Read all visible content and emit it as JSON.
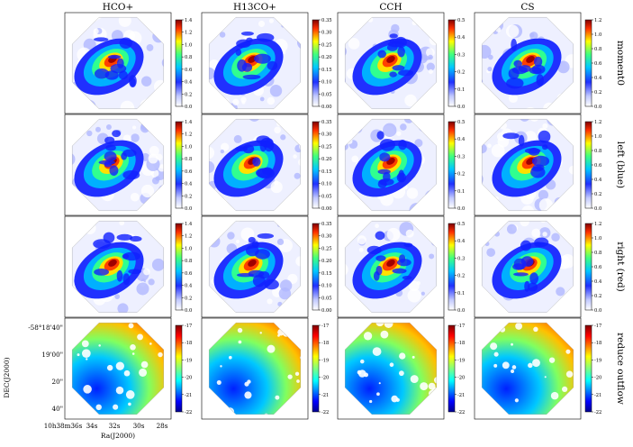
{
  "columns": [
    "HCO+",
    "H13CO+",
    "CCH",
    "CS"
  ],
  "rows": [
    "moment0",
    "left (blue)",
    "right (red)",
    "reduce outflow"
  ],
  "axes": {
    "xlabel": "Ra(J2000)",
    "ylabel": "DEC(J2000)",
    "xticks": [
      "10h38m36s",
      "34s",
      "32s",
      "30s",
      "28s"
    ],
    "yticks": [
      "-58°18'40\"",
      "19'00\"",
      "20\"",
      "40\""
    ]
  },
  "colorbars": {
    "HCO+": {
      "ticks": [
        "1.4",
        "1.2",
        "1.0",
        "0.8",
        "0.6",
        "0.4",
        "0.2",
        "0.0"
      ]
    },
    "H13CO+": {
      "ticks": [
        "0.35",
        "0.30",
        "0.25",
        "0.20",
        "0.15",
        "0.10",
        "0.05",
        "0.00"
      ]
    },
    "CCH": {
      "ticks": [
        "0.5",
        "0.4",
        "0.3",
        "0.2",
        "0.1",
        "0.0"
      ]
    },
    "CS": {
      "ticks": [
        "1.2",
        "1.0",
        "0.8",
        "0.6",
        "0.4",
        "0.2",
        "0.0"
      ]
    },
    "velocity": {
      "ticks": [
        "-17",
        "-18",
        "-19",
        "-20",
        "-21",
        "-22"
      ]
    }
  },
  "colors": {
    "jet": [
      "#00008f",
      "#0000ff",
      "#0080ff",
      "#00ffff",
      "#80ff80",
      "#ffff00",
      "#ff8000",
      "#ff0000",
      "#800000"
    ],
    "frame": "#000000"
  }
}
